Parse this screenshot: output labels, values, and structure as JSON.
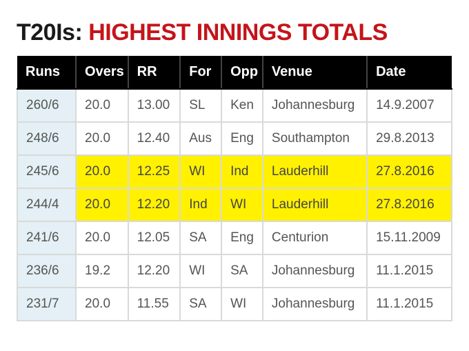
{
  "title": {
    "lead": "T20Is: ",
    "main": "HIGHEST INNINGS TOTALS",
    "lead_color": "#1a1a1a",
    "main_color": "#c4141a",
    "fontsize": 34
  },
  "table": {
    "type": "table",
    "header_bg": "#000000",
    "header_text_color": "#ffffff",
    "header_fontsize": 20,
    "cell_fontsize": 19,
    "cell_text_color": "#555555",
    "border_color": "#d9d9d9",
    "runs_cell_bg": "#e4f0f5",
    "highlight_bg": "#fff100",
    "columns": [
      {
        "key": "runs",
        "label": "Runs",
        "width": "13.5%"
      },
      {
        "key": "overs",
        "label": "Overs",
        "width": "12%"
      },
      {
        "key": "rr",
        "label": "RR",
        "width": "12%"
      },
      {
        "key": "for",
        "label": "For",
        "width": "9.5%"
      },
      {
        "key": "opp",
        "label": "Opp",
        "width": "9.5%"
      },
      {
        "key": "venue",
        "label": "Venue",
        "width": "24%"
      },
      {
        "key": "date",
        "label": "Date",
        "width": "19.5%"
      }
    ],
    "rows": [
      {
        "runs": "260/6",
        "overs": "20.0",
        "rr": "13.00",
        "for": "SL",
        "opp": "Ken",
        "venue": "Johannesburg",
        "date": "14.9.2007",
        "highlight": false
      },
      {
        "runs": "248/6",
        "overs": "20.0",
        "rr": "12.40",
        "for": "Aus",
        "opp": "Eng",
        "venue": "Southampton",
        "date": "29.8.2013",
        "highlight": false
      },
      {
        "runs": "245/6",
        "overs": "20.0",
        "rr": "12.25",
        "for": "WI",
        "opp": "Ind",
        "venue": "Lauderhill",
        "date": "27.8.2016",
        "highlight": true
      },
      {
        "runs": "244/4",
        "overs": "20.0",
        "rr": "12.20",
        "for": "Ind",
        "opp": "WI",
        "venue": "Lauderhill",
        "date": "27.8.2016",
        "highlight": true
      },
      {
        "runs": "241/6",
        "overs": "20.0",
        "rr": "12.05",
        "for": "SA",
        "opp": "Eng",
        "venue": "Centurion",
        "date": "15.11.2009",
        "highlight": false
      },
      {
        "runs": "236/6",
        "overs": "19.2",
        "rr": "12.20",
        "for": "WI",
        "opp": "SA",
        "venue": "Johannesburg",
        "date": "11.1.2015",
        "highlight": false
      },
      {
        "runs": "231/7",
        "overs": "20.0",
        "rr": "11.55",
        "for": "SA",
        "opp": "WI",
        "venue": "Johannesburg",
        "date": "11.1.2015",
        "highlight": false
      }
    ]
  }
}
